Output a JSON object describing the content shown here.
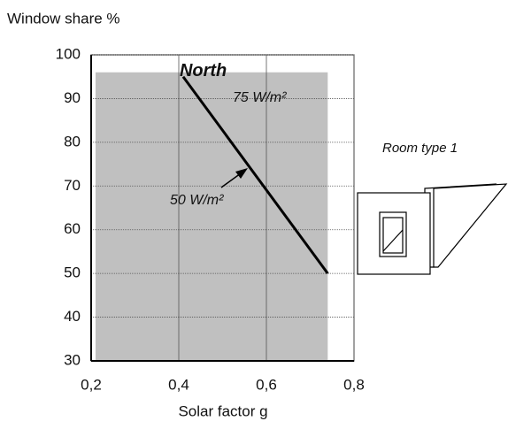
{
  "chart_data": {
    "type": "line",
    "y_axis_title": "Window share  %",
    "x_axis_title": "Solar factor g",
    "xlim": [
      0.2,
      0.8
    ],
    "ylim": [
      30,
      100
    ],
    "xticks": [
      {
        "value": 0.2,
        "label": "0,2"
      },
      {
        "value": 0.4,
        "label": "0,4"
      },
      {
        "value": 0.6,
        "label": "0,6"
      },
      {
        "value": 0.8,
        "label": "0,8"
      }
    ],
    "yticks": [
      30,
      40,
      50,
      60,
      70,
      80,
      90,
      100
    ],
    "grid": true,
    "region": {
      "x": [
        0.21,
        0.74
      ],
      "y": [
        30,
        96
      ],
      "color": "#c0c0c0"
    },
    "series": [
      {
        "name": "North",
        "color": "#000000",
        "x": [
          0.41,
          0.74
        ],
        "values": [
          95,
          50
        ]
      }
    ],
    "annotations": [
      "75 W/m²",
      "50 W/m²",
      "Room type 1"
    ]
  }
}
